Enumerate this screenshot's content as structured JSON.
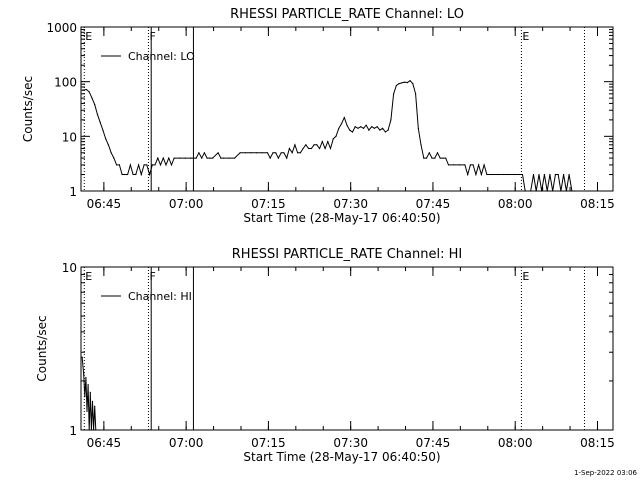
{
  "footer_timestamp": "1-Sep-2022 03:06",
  "chart_data": [
    {
      "type": "line",
      "title": "RHESSI PARTICLE_RATE Channel: LO",
      "xlabel": "Start Time (28-May-17 06:40:50)",
      "ylabel": "Counts/sec",
      "y_scale": "log",
      "ylim": [
        1,
        1000
      ],
      "y_ticks": [
        {
          "value": 1,
          "label": "1"
        },
        {
          "value": 10,
          "label": "10"
        },
        {
          "value": 100,
          "label": "100"
        },
        {
          "value": 1000,
          "label": "1000"
        }
      ],
      "x_unit": "minutes from 06:40:50",
      "xlim": [
        0,
        97
      ],
      "x_ticks": [
        {
          "value": 4.17,
          "label": "06:45"
        },
        {
          "value": 19.17,
          "label": "07:00"
        },
        {
          "value": 34.17,
          "label": "07:15"
        },
        {
          "value": 49.17,
          "label": "07:30"
        },
        {
          "value": 64.17,
          "label": "07:45"
        },
        {
          "value": 79.17,
          "label": "08:00"
        },
        {
          "value": 94.17,
          "label": "08:15"
        }
      ],
      "legend": {
        "label": "Channel: LO",
        "position": "top-left"
      },
      "markers": [
        {
          "x": 0.6,
          "label": "E",
          "style": "dotted"
        },
        {
          "x": 12.3,
          "label": "F",
          "style": "dotted"
        },
        {
          "x": 12.8,
          "label": "",
          "style": "solid"
        },
        {
          "x": 20.5,
          "label": "",
          "style": "solid"
        },
        {
          "x": 80.3,
          "label": "E",
          "style": "dotted"
        },
        {
          "x": 91.8,
          "label": "",
          "style": "dotted"
        }
      ],
      "series": [
        {
          "name": "Channel: LO",
          "points": [
            [
              0.3,
              70
            ],
            [
              1.0,
              72
            ],
            [
              1.5,
              65
            ],
            [
              2.0,
              50
            ],
            [
              2.5,
              38
            ],
            [
              3.0,
              25
            ],
            [
              3.5,
              18
            ],
            [
              4.0,
              13
            ],
            [
              4.5,
              9
            ],
            [
              5.0,
              7
            ],
            [
              5.5,
              5
            ],
            [
              6.0,
              4
            ],
            [
              6.5,
              3
            ],
            [
              7.0,
              3
            ],
            [
              7.5,
              2
            ],
            [
              8.0,
              2
            ],
            [
              8.5,
              2
            ],
            [
              9.0,
              3
            ],
            [
              9.5,
              2
            ],
            [
              10.0,
              2
            ],
            [
              10.5,
              3
            ],
            [
              11.0,
              2
            ],
            [
              11.5,
              3
            ],
            [
              12.0,
              3
            ],
            [
              12.5,
              2
            ],
            [
              13.0,
              3
            ],
            [
              13.5,
              3
            ],
            [
              14.0,
              4
            ],
            [
              14.5,
              3
            ],
            [
              15.0,
              4
            ],
            [
              15.5,
              3
            ],
            [
              16.0,
              4
            ],
            [
              16.5,
              3
            ],
            [
              17.0,
              4
            ],
            [
              18.0,
              4
            ],
            [
              19.0,
              4
            ],
            [
              20.0,
              4
            ],
            [
              21.0,
              4
            ],
            [
              21.5,
              5
            ],
            [
              22.0,
              4
            ],
            [
              22.5,
              5
            ],
            [
              23.0,
              4
            ],
            [
              23.5,
              4
            ],
            [
              24.0,
              4
            ],
            [
              25.0,
              5
            ],
            [
              25.5,
              4
            ],
            [
              26.0,
              4
            ],
            [
              27.0,
              4
            ],
            [
              28.0,
              4
            ],
            [
              29.0,
              5
            ],
            [
              30.0,
              5
            ],
            [
              31.0,
              5
            ],
            [
              32.0,
              5
            ],
            [
              33.0,
              5
            ],
            [
              34.0,
              5
            ],
            [
              34.5,
              4
            ],
            [
              35.0,
              5
            ],
            [
              35.5,
              5
            ],
            [
              36.0,
              4
            ],
            [
              36.5,
              5
            ],
            [
              37.0,
              5
            ],
            [
              37.5,
              4
            ],
            [
              38.0,
              6
            ],
            [
              38.5,
              5
            ],
            [
              39.0,
              7
            ],
            [
              39.5,
              5
            ],
            [
              40.0,
              5
            ],
            [
              40.5,
              6
            ],
            [
              41.0,
              7
            ],
            [
              41.5,
              6
            ],
            [
              42.0,
              6
            ],
            [
              42.5,
              7
            ],
            [
              43.0,
              7
            ],
            [
              43.5,
              6
            ],
            [
              44.0,
              8
            ],
            [
              44.5,
              6
            ],
            [
              45.0,
              8
            ],
            [
              45.5,
              6
            ],
            [
              46.0,
              9
            ],
            [
              46.5,
              10
            ],
            [
              47.0,
              14
            ],
            [
              47.5,
              17
            ],
            [
              48.0,
              22
            ],
            [
              48.5,
              16
            ],
            [
              49.0,
              13
            ],
            [
              49.5,
              12
            ],
            [
              50.0,
              15
            ],
            [
              50.5,
              14
            ],
            [
              51.0,
              15
            ],
            [
              51.5,
              14
            ],
            [
              52.0,
              16
            ],
            [
              52.5,
              13
            ],
            [
              53.0,
              15
            ],
            [
              53.5,
              14
            ],
            [
              54.0,
              15
            ],
            [
              54.5,
              13
            ],
            [
              55.0,
              14
            ],
            [
              55.5,
              12
            ],
            [
              56.0,
              13
            ],
            [
              56.5,
              20
            ],
            [
              57.0,
              60
            ],
            [
              57.5,
              85
            ],
            [
              58.0,
              92
            ],
            [
              58.5,
              95
            ],
            [
              59.0,
              98
            ],
            [
              59.5,
              96
            ],
            [
              60.0,
              104
            ],
            [
              60.5,
              92
            ],
            [
              61.0,
              60
            ],
            [
              61.5,
              14
            ],
            [
              62.0,
              7
            ],
            [
              62.5,
              4
            ],
            [
              63.0,
              4
            ],
            [
              63.5,
              5
            ],
            [
              64.0,
              4
            ],
            [
              64.5,
              4
            ],
            [
              65.0,
              5
            ],
            [
              65.5,
              4
            ],
            [
              66.0,
              4
            ],
            [
              66.5,
              4
            ],
            [
              67.0,
              3
            ],
            [
              68.0,
              3
            ],
            [
              69.0,
              3
            ],
            [
              70.0,
              3
            ],
            [
              70.5,
              2
            ],
            [
              71.0,
              3
            ],
            [
              71.5,
              3
            ],
            [
              72.0,
              2
            ],
            [
              72.5,
              3
            ],
            [
              73.0,
              2
            ],
            [
              73.5,
              3
            ],
            [
              74.0,
              2
            ],
            [
              75.0,
              2
            ],
            [
              76.0,
              2
            ],
            [
              77.0,
              2
            ],
            [
              78.0,
              2
            ],
            [
              79.0,
              2
            ],
            [
              80.0,
              2
            ],
            [
              80.5,
              2
            ],
            [
              81.0,
              1
            ],
            [
              82.0,
              1
            ],
            [
              82.5,
              2
            ],
            [
              83.0,
              1
            ],
            [
              83.5,
              2
            ],
            [
              84.0,
              1
            ],
            [
              84.5,
              2
            ],
            [
              85.0,
              1
            ],
            [
              85.5,
              2
            ],
            [
              86.0,
              1
            ],
            [
              86.5,
              2
            ],
            [
              87.0,
              2
            ],
            [
              87.5,
              1
            ],
            [
              88.0,
              2
            ],
            [
              88.5,
              1
            ],
            [
              89.0,
              2
            ],
            [
              89.5,
              1
            ],
            [
              90.0,
              1
            ]
          ]
        }
      ]
    },
    {
      "type": "line",
      "title": "RHESSI PARTICLE_RATE Channel: HI",
      "xlabel": "Start Time (28-May-17 06:40:50)",
      "ylabel": "Counts/sec",
      "y_scale": "log",
      "ylim": [
        1,
        10
      ],
      "y_ticks": [
        {
          "value": 1,
          "label": "1"
        },
        {
          "value": 10,
          "label": "10"
        }
      ],
      "x_unit": "minutes from 06:40:50",
      "xlim": [
        0,
        97
      ],
      "x_ticks": [
        {
          "value": 4.17,
          "label": "06:45"
        },
        {
          "value": 19.17,
          "label": "07:00"
        },
        {
          "value": 34.17,
          "label": "07:15"
        },
        {
          "value": 49.17,
          "label": "07:30"
        },
        {
          "value": 64.17,
          "label": "07:45"
        },
        {
          "value": 79.17,
          "label": "08:00"
        },
        {
          "value": 94.17,
          "label": "08:15"
        }
      ],
      "legend": {
        "label": "Channel: HI",
        "position": "top-left"
      },
      "markers": [
        {
          "x": 0.6,
          "label": "E",
          "style": "dotted"
        },
        {
          "x": 12.3,
          "label": "F",
          "style": "dotted"
        },
        {
          "x": 12.8,
          "label": "",
          "style": "solid"
        },
        {
          "x": 20.5,
          "label": "",
          "style": "solid"
        },
        {
          "x": 80.3,
          "label": "E",
          "style": "dotted"
        },
        {
          "x": 91.8,
          "label": "",
          "style": "dotted"
        }
      ],
      "series": [
        {
          "name": "Channel: HI",
          "points": [
            [
              0.2,
              2.8
            ],
            [
              0.5,
              2.2
            ],
            [
              0.7,
              1.6
            ],
            [
              0.9,
              2.1
            ],
            [
              1.1,
              1.3
            ],
            [
              1.3,
              1.9
            ],
            [
              1.5,
              1.0
            ],
            [
              1.7,
              1.7
            ],
            [
              1.9,
              1.0
            ],
            [
              2.1,
              1.5
            ],
            [
              2.3,
              1.0
            ],
            [
              2.5,
              1.4
            ],
            [
              2.7,
              1.0
            ]
          ]
        }
      ]
    }
  ]
}
